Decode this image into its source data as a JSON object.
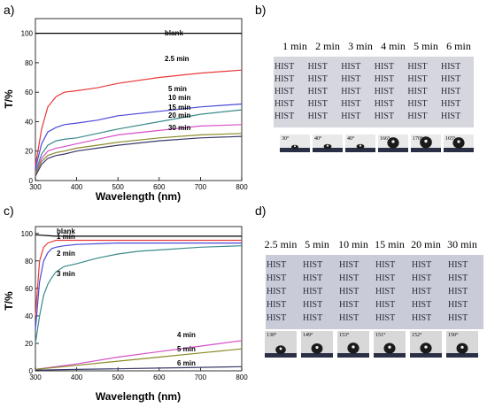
{
  "chart_data": [
    {
      "panel": "a)",
      "type": "line",
      "xlabel": "Wavelength (nm)",
      "ylabel": "T/%",
      "xlim": [
        300,
        800
      ],
      "ylim": [
        0,
        110
      ],
      "xticks": [
        "300",
        "400",
        "500",
        "600",
        "700",
        "800"
      ],
      "yticks": [
        "0",
        "20",
        "40",
        "60",
        "80",
        "100"
      ],
      "grid": false,
      "series": [
        {
          "name": "blank",
          "color": "#000000",
          "x": [
            300,
            350,
            400,
            500,
            600,
            700,
            800
          ],
          "y": [
            100,
            100,
            100,
            100,
            100,
            100,
            100
          ]
        },
        {
          "name": "2.5 min",
          "color": "#e8393a",
          "x": [
            300,
            315,
            330,
            350,
            370,
            400,
            450,
            500,
            600,
            700,
            800
          ],
          "y": [
            10,
            35,
            50,
            57,
            60,
            61,
            63,
            66,
            70,
            73,
            75
          ]
        },
        {
          "name": "5 min",
          "color": "#4a4ad8",
          "x": [
            300,
            315,
            330,
            350,
            370,
            400,
            450,
            500,
            600,
            700,
            800
          ],
          "y": [
            8,
            25,
            33,
            36,
            38,
            39,
            41,
            44,
            47,
            50,
            52
          ]
        },
        {
          "name": "10 min",
          "color": "#3a8a8a",
          "x": [
            300,
            315,
            330,
            350,
            370,
            400,
            450,
            500,
            600,
            700,
            800
          ],
          "y": [
            6,
            18,
            24,
            27,
            28,
            29,
            32,
            35,
            40,
            45,
            48
          ]
        },
        {
          "name": "15 min",
          "color": "#d64fc8",
          "x": [
            300,
            315,
            330,
            350,
            370,
            400,
            450,
            500,
            600,
            700,
            800
          ],
          "y": [
            5,
            15,
            20,
            22,
            23,
            25,
            28,
            31,
            34,
            37,
            38
          ]
        },
        {
          "name": "20 min",
          "color": "#8a8a2a",
          "x": [
            300,
            315,
            330,
            350,
            370,
            400,
            450,
            500,
            600,
            700,
            800
          ],
          "y": [
            4,
            13,
            17,
            19,
            20,
            22,
            24,
            26,
            29,
            31,
            32
          ]
        },
        {
          "name": "30 min",
          "color": "#3a3a6a",
          "x": [
            300,
            315,
            330,
            350,
            370,
            400,
            450,
            500,
            600,
            700,
            800
          ],
          "y": [
            3,
            11,
            15,
            17,
            18,
            20,
            22,
            24,
            27,
            29,
            30
          ]
        }
      ]
    },
    {
      "panel": "c)",
      "type": "line",
      "xlabel": "Wavelength (nm)",
      "ylabel": "T/%",
      "xlim": [
        300,
        800
      ],
      "ylim": [
        0,
        105
      ],
      "xticks": [
        "300",
        "400",
        "500",
        "600",
        "700",
        "800"
      ],
      "yticks": [
        "0",
        "20",
        "40",
        "60",
        "80",
        "100"
      ],
      "grid": false,
      "series": [
        {
          "name": "blank",
          "color": "#000000",
          "x": [
            300,
            350,
            400,
            500,
            600,
            700,
            800
          ],
          "y": [
            99,
            98,
            98,
            98,
            98,
            98,
            98
          ]
        },
        {
          "name": "1 min",
          "color": "#e8393a",
          "x": [
            300,
            310,
            320,
            330,
            340,
            350,
            370,
            400,
            500,
            600,
            700,
            800
          ],
          "y": [
            40,
            80,
            90,
            93,
            94,
            95,
            95,
            95,
            95,
            95,
            95,
            95
          ]
        },
        {
          "name": "2 min",
          "color": "#4a4ad8",
          "x": [
            300,
            310,
            320,
            330,
            340,
            350,
            370,
            400,
            500,
            600,
            700,
            800
          ],
          "y": [
            30,
            65,
            80,
            86,
            89,
            90,
            91,
            92,
            93,
            93,
            93,
            93
          ]
        },
        {
          "name": "3 min",
          "color": "#3a8a8a",
          "x": [
            300,
            310,
            320,
            330,
            340,
            350,
            370,
            400,
            450,
            500,
            550,
            600,
            700,
            800
          ],
          "y": [
            20,
            40,
            55,
            63,
            68,
            72,
            76,
            78,
            82,
            85,
            87,
            88,
            90,
            91
          ]
        },
        {
          "name": "4 min",
          "color": "#d64fc8",
          "x": [
            300,
            400,
            500,
            600,
            700,
            800
          ],
          "y": [
            1,
            5,
            10,
            14,
            18,
            22
          ]
        },
        {
          "name": "5 min",
          "color": "#8a8a2a",
          "x": [
            300,
            400,
            500,
            600,
            700,
            800
          ],
          "y": [
            1,
            4,
            7,
            10,
            13,
            16
          ]
        },
        {
          "name": "6 min",
          "color": "#3a3a6a",
          "x": [
            300,
            400,
            500,
            600,
            700,
            800
          ],
          "y": [
            0.5,
            1,
            1.5,
            2,
            2.5,
            3
          ]
        }
      ]
    }
  ],
  "photos": [
    {
      "panel": "b)",
      "times": [
        "1 min",
        "2 min",
        "3 min",
        "4 min",
        "5 min",
        "6 min"
      ],
      "hist_word": "HIST",
      "angles": [
        "30°",
        "40°",
        "40°",
        "166°",
        "170°",
        "165°"
      ]
    },
    {
      "panel": "d)",
      "times": [
        "2.5 min",
        "5 min",
        "10 min",
        "15 min",
        "20 min",
        "30 min"
      ],
      "hist_word": "HIST",
      "angles": [
        "130°",
        "149°",
        "153°",
        "151°",
        "152°",
        "150°"
      ]
    }
  ]
}
